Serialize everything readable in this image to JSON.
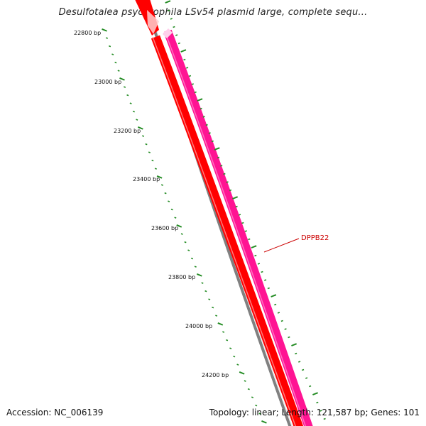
{
  "title": "Desulfotalea psychrophila LSv54 plasmid large, complete sequ...",
  "footer": {
    "accession": "Accession: NC_006139",
    "summary": "Topology: linear; Length: 121,587 bp; Genes: 101"
  },
  "ruler": {
    "labels": [
      "22800 bp",
      "23000 bp",
      "23200 bp",
      "23400 bp",
      "23600 bp",
      "23800 bp",
      "24000 bp",
      "24200 bp"
    ]
  },
  "genes": [
    {
      "name": "DPPB22",
      "color": "#ff0000"
    }
  ],
  "colors": {
    "backbone": "#808080",
    "forward_gene": "#ff0000",
    "reverse_gene": "#ff1493",
    "ruler": "#228b22",
    "label": "#cc0000"
  }
}
